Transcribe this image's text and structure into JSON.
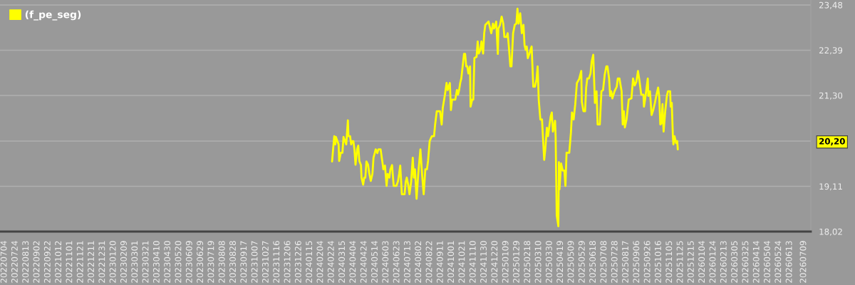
{
  "chart_data": {
    "type": "line",
    "x": [
      "2024-02-25",
      "2024-02-29",
      "2024-03-02",
      "2024-03-03",
      "2024-03-08",
      "2024-03-09",
      "2024-03-12",
      "2024-03-15",
      "2024-03-17",
      "2024-03-22",
      "2024-03-25",
      "2024-03-26",
      "2024-03-29",
      "2024-03-31",
      "2024-04-02",
      "2024-04-04",
      "2024-04-06",
      "2024-04-08",
      "2024-04-11",
      "2024-04-13",
      "2024-04-15",
      "2024-04-18",
      "2024-04-19",
      "2024-04-22",
      "2024-04-24",
      "2024-04-26",
      "2024-04-28",
      "2024-05-01",
      "2024-05-03",
      "2024-05-06",
      "2024-05-09",
      "2024-05-11",
      "2024-05-15",
      "2024-05-18",
      "2024-05-20",
      "2024-05-24",
      "2024-05-28",
      "2024-05-29",
      "2024-06-01",
      "2024-06-04",
      "2024-06-06",
      "2024-06-09",
      "2024-06-11",
      "2024-06-14",
      "2024-06-17",
      "2024-06-22",
      "2024-06-25",
      "2024-06-27",
      "2024-06-29",
      "2024-07-02",
      "2024-07-07",
      "2024-07-09",
      "2024-07-11",
      "2024-07-14",
      "2024-07-16",
      "2024-07-19",
      "2024-07-22",
      "2024-07-24",
      "2024-07-26",
      "2024-07-29",
      "2024-08-01",
      "2024-08-05",
      "2024-08-08",
      "2024-08-11",
      "2024-08-14",
      "2024-08-17",
      "2024-08-19",
      "2024-08-22",
      "2024-08-26",
      "2024-08-30",
      "2024-09-01",
      "2024-09-04",
      "2024-09-10",
      "2024-09-13",
      "2024-09-15",
      "2024-09-19",
      "2024-09-22",
      "2024-09-24",
      "2024-09-28",
      "2024-09-30",
      "2024-10-02",
      "2024-10-08",
      "2024-10-11",
      "2024-10-13",
      "2024-10-15",
      "2024-10-17",
      "2024-10-19",
      "2024-10-22",
      "2024-10-24",
      "2024-10-26",
      "2024-10-28",
      "2024-10-30",
      "2024-11-01",
      "2024-11-04",
      "2024-11-05",
      "2024-11-08",
      "2024-11-10",
      "2024-11-12",
      "2024-11-16",
      "2024-11-18",
      "2024-11-20",
      "2024-11-23",
      "2024-11-25",
      "2024-11-28",
      "2024-11-30",
      "2024-12-02",
      "2024-12-08",
      "2024-12-11",
      "2024-12-13",
      "2024-12-16",
      "2024-12-18",
      "2024-12-22",
      "2024-12-25",
      "2024-12-26",
      "2024-12-29",
      "2025-01-01",
      "2025-01-04",
      "2025-01-06",
      "2025-01-10",
      "2025-01-12",
      "2025-01-14",
      "2025-01-17",
      "2025-01-19",
      "2025-01-22",
      "2025-01-25",
      "2025-01-28",
      "2025-01-30",
      "2025-02-01",
      "2025-02-04",
      "2025-02-07",
      "2025-02-10",
      "2025-02-12",
      "2025-02-14",
      "2025-02-16",
      "2025-02-18",
      "2025-02-21",
      "2025-02-25",
      "2025-02-28",
      "2025-03-03",
      "2025-03-06",
      "2025-03-08",
      "2025-03-10",
      "2025-03-13",
      "2025-03-16",
      "2025-03-20",
      "2025-03-22",
      "2025-03-25",
      "2025-03-27",
      "2025-04-01",
      "2025-04-03",
      "2025-04-05",
      "2025-04-09",
      "2025-04-10",
      "2025-04-12",
      "2025-04-15",
      "2025-04-16",
      "2025-04-17",
      "2025-04-20",
      "2025-04-23",
      "2025-04-26",
      "2025-04-28",
      "2025-04-30",
      "2025-05-05",
      "2025-05-08",
      "2025-05-10",
      "2025-05-13",
      "2025-05-16",
      "2025-05-19",
      "2025-05-23",
      "2025-05-27",
      "2025-05-28",
      "2025-05-31",
      "2025-06-03",
      "2025-06-05",
      "2025-06-07",
      "2025-06-10",
      "2025-06-13",
      "2025-06-15",
      "2025-06-18",
      "2025-06-21",
      "2025-06-24",
      "2025-06-26",
      "2025-06-30",
      "2025-07-03",
      "2025-07-06",
      "2025-07-09",
      "2025-07-12",
      "2025-07-14",
      "2025-07-17",
      "2025-07-19",
      "2025-07-21",
      "2025-07-23",
      "2025-07-27",
      "2025-07-31",
      "2025-08-02",
      "2025-08-05",
      "2025-08-09",
      "2025-08-11",
      "2025-08-13",
      "2025-08-15",
      "2025-08-18",
      "2025-08-22",
      "2025-08-27",
      "2025-08-30",
      "2025-09-02",
      "2025-09-05",
      "2025-09-08",
      "2025-09-11",
      "2025-09-14",
      "2025-09-18",
      "2025-09-19",
      "2025-09-21",
      "2025-09-26",
      "2025-09-27",
      "2025-09-30",
      "2025-10-03",
      "2025-10-06",
      "2025-10-09",
      "2025-10-12",
      "2025-10-15",
      "2025-10-17",
      "2025-10-19",
      "2025-10-21",
      "2025-10-23",
      "2025-10-25",
      "2025-10-28",
      "2025-10-31",
      "2025-11-02",
      "2025-11-06",
      "2025-11-07",
      "2025-11-09",
      "2025-11-11",
      "2025-11-12",
      "2025-11-14",
      "2025-11-17",
      "2025-11-19",
      "2025-11-20"
    ],
    "series": [
      {
        "name": "(f_pe_seg)",
        "color": "#ffff00",
        "values": [
          19.71,
          20.32,
          20.12,
          20.3,
          20.12,
          19.72,
          19.92,
          19.92,
          20.3,
          20.12,
          20.7,
          20.32,
          20.32,
          20.12,
          20.2,
          20.2,
          20.0,
          19.63,
          20.0,
          20.09,
          19.72,
          19.62,
          19.32,
          19.15,
          19.32,
          19.32,
          19.71,
          19.63,
          19.44,
          19.24,
          19.41,
          19.8,
          20.0,
          19.91,
          20.0,
          20.0,
          19.63,
          19.52,
          19.61,
          19.12,
          19.41,
          19.32,
          19.52,
          19.62,
          19.12,
          19.12,
          19.24,
          19.41,
          19.61,
          18.92,
          18.92,
          19.22,
          19.32,
          19.12,
          18.92,
          19.22,
          19.8,
          19.32,
          19.52,
          18.81,
          19.41,
          20.0,
          19.41,
          18.92,
          19.52,
          19.52,
          19.72,
          20.2,
          20.32,
          20.32,
          20.6,
          20.92,
          20.92,
          20.6,
          21.0,
          21.32,
          21.6,
          21.43,
          21.6,
          20.95,
          21.2,
          21.2,
          21.43,
          21.32,
          21.43,
          21.6,
          21.71,
          22.06,
          22.3,
          22.3,
          22.0,
          22.0,
          21.83,
          22.0,
          21.03,
          21.2,
          21.2,
          22.2,
          22.23,
          22.6,
          22.31,
          22.4,
          22.6,
          22.31,
          22.8,
          23.0,
          23.08,
          22.91,
          22.8,
          23.03,
          22.91,
          23.08,
          22.3,
          22.91,
          23.0,
          23.2,
          23.03,
          22.71,
          22.71,
          22.8,
          22.51,
          22.0,
          22.0,
          22.8,
          23.0,
          23.03,
          23.39,
          23.03,
          23.28,
          22.8,
          23.0,
          22.51,
          22.4,
          22.48,
          22.2,
          22.31,
          22.48,
          21.51,
          21.51,
          21.69,
          22.0,
          21.2,
          20.72,
          20.72,
          19.75,
          20.0,
          20.52,
          20.32,
          20.8,
          20.89,
          20.43,
          20.69,
          20.29,
          18.41,
          18.15,
          19.69,
          19.04,
          19.66,
          19.49,
          19.49,
          19.12,
          19.92,
          19.92,
          20.4,
          20.89,
          20.72,
          21.09,
          21.6,
          21.69,
          21.89,
          21.15,
          20.92,
          20.92,
          21.49,
          21.71,
          21.71,
          21.83,
          22.11,
          22.28,
          21.12,
          21.4,
          20.6,
          20.6,
          21.4,
          21.43,
          21.8,
          22.0,
          22.0,
          21.71,
          21.29,
          21.4,
          21.23,
          21.4,
          21.51,
          21.71,
          21.71,
          21.4,
          20.6,
          20.92,
          20.53,
          20.72,
          21.2,
          21.23,
          21.71,
          21.54,
          21.63,
          21.89,
          21.63,
          21.32,
          21.32,
          21.03,
          21.2,
          21.71,
          21.29,
          21.4,
          20.83,
          20.95,
          21.12,
          21.32,
          21.49,
          21.26,
          20.6,
          20.63,
          21.09,
          20.43,
          20.92,
          21.29,
          21.4,
          21.4,
          21.03,
          21.12,
          20.32,
          20.12,
          20.32,
          20.15,
          20.2,
          20.0
        ]
      }
    ],
    "xlim": [
      "2022-06-26",
      "2026-07-22"
    ],
    "xticks": [
      {
        "value": "2022-07-04",
        "label": "20220704"
      },
      {
        "value": "2022-07-24",
        "label": "20220724"
      },
      {
        "value": "2022-08-13",
        "label": "20220813"
      },
      {
        "value": "2022-09-02",
        "label": "20220902"
      },
      {
        "value": "2022-09-22",
        "label": "20220922"
      },
      {
        "value": "2022-10-12",
        "label": "20221012"
      },
      {
        "value": "2022-11-01",
        "label": "20221101"
      },
      {
        "value": "2022-11-21",
        "label": "20221121"
      },
      {
        "value": "2022-12-11",
        "label": "20221211"
      },
      {
        "value": "2022-12-31",
        "label": "20221231"
      },
      {
        "value": "2023-01-20",
        "label": "20230120"
      },
      {
        "value": "2023-02-09",
        "label": "20230209"
      },
      {
        "value": "2023-03-01",
        "label": "20230301"
      },
      {
        "value": "2023-03-21",
        "label": "20230321"
      },
      {
        "value": "2023-04-10",
        "label": "20230410"
      },
      {
        "value": "2023-04-30",
        "label": "20230430"
      },
      {
        "value": "2023-05-20",
        "label": "20230520"
      },
      {
        "value": "2023-06-09",
        "label": "20230609"
      },
      {
        "value": "2023-06-29",
        "label": "20230629"
      },
      {
        "value": "2023-07-19",
        "label": "20230719"
      },
      {
        "value": "2023-08-08",
        "label": "20230808"
      },
      {
        "value": "2023-08-28",
        "label": "20230828"
      },
      {
        "value": "2023-09-17",
        "label": "20230917"
      },
      {
        "value": "2023-10-07",
        "label": "20231007"
      },
      {
        "value": "2023-10-27",
        "label": "20231027"
      },
      {
        "value": "2023-11-16",
        "label": "20231116"
      },
      {
        "value": "2023-12-06",
        "label": "20231206"
      },
      {
        "value": "2023-12-26",
        "label": "20231226"
      },
      {
        "value": "2024-01-15",
        "label": "20240115"
      },
      {
        "value": "2024-02-04",
        "label": "20240204"
      },
      {
        "value": "2024-02-24",
        "label": "20240224"
      },
      {
        "value": "2024-03-15",
        "label": "20240315"
      },
      {
        "value": "2024-04-04",
        "label": "20240404"
      },
      {
        "value": "2024-04-24",
        "label": "20240424"
      },
      {
        "value": "2024-05-14",
        "label": "20240514"
      },
      {
        "value": "2024-06-03",
        "label": "20240603"
      },
      {
        "value": "2024-06-23",
        "label": "20240623"
      },
      {
        "value": "2024-07-13",
        "label": "20240713"
      },
      {
        "value": "2024-08-02",
        "label": "20240802"
      },
      {
        "value": "2024-08-22",
        "label": "20240822"
      },
      {
        "value": "2024-09-11",
        "label": "20240911"
      },
      {
        "value": "2024-10-01",
        "label": "20241001"
      },
      {
        "value": "2024-10-21",
        "label": "20241021"
      },
      {
        "value": "2024-11-10",
        "label": "20241110"
      },
      {
        "value": "2024-11-30",
        "label": "20241130"
      },
      {
        "value": "2024-12-20",
        "label": "20241220"
      },
      {
        "value": "2025-01-09",
        "label": "20250109"
      },
      {
        "value": "2025-01-29",
        "label": "20250129"
      },
      {
        "value": "2025-02-18",
        "label": "20250218"
      },
      {
        "value": "2025-03-10",
        "label": "20250310"
      },
      {
        "value": "2025-03-30",
        "label": "20250330"
      },
      {
        "value": "2025-04-19",
        "label": "20250419"
      },
      {
        "value": "2025-05-09",
        "label": "20250509"
      },
      {
        "value": "2025-05-29",
        "label": "20250529"
      },
      {
        "value": "2025-06-18",
        "label": "20250618"
      },
      {
        "value": "2025-07-08",
        "label": "20250708"
      },
      {
        "value": "2025-07-28",
        "label": "20250728"
      },
      {
        "value": "2025-08-17",
        "label": "20250817"
      },
      {
        "value": "2025-09-06",
        "label": "20250906"
      },
      {
        "value": "2025-09-26",
        "label": "20250926"
      },
      {
        "value": "2025-10-16",
        "label": "20251016"
      },
      {
        "value": "2025-11-05",
        "label": "20251105"
      },
      {
        "value": "2025-11-25",
        "label": "20251125"
      },
      {
        "value": "2025-12-15",
        "label": "20251215"
      },
      {
        "value": "2026-01-04",
        "label": "20260104"
      },
      {
        "value": "2026-01-24",
        "label": "20260124"
      },
      {
        "value": "2026-02-13",
        "label": "20260213"
      },
      {
        "value": "2026-03-05",
        "label": "20260305"
      },
      {
        "value": "2026-03-25",
        "label": "20260325"
      },
      {
        "value": "2026-04-14",
        "label": "20260414"
      },
      {
        "value": "2026-05-04",
        "label": "20260504"
      },
      {
        "value": "2026-05-24",
        "label": "20260524"
      },
      {
        "value": "2026-06-13",
        "label": "20260613"
      },
      {
        "value": "2026-07-09",
        "label": "20260709"
      }
    ],
    "ylim": [
      18.02,
      23.6
    ],
    "yticks": [
      {
        "value": 18.02,
        "label": "18,02"
      },
      {
        "value": 19.11,
        "label": "19,11"
      },
      {
        "value": 20.2,
        "label": "20,20"
      },
      {
        "value": 21.3,
        "label": "21,30"
      },
      {
        "value": 22.39,
        "label": "22,39"
      },
      {
        "value": 23.48,
        "label": "23,48"
      }
    ],
    "grid": "y",
    "legend": "top left"
  }
}
